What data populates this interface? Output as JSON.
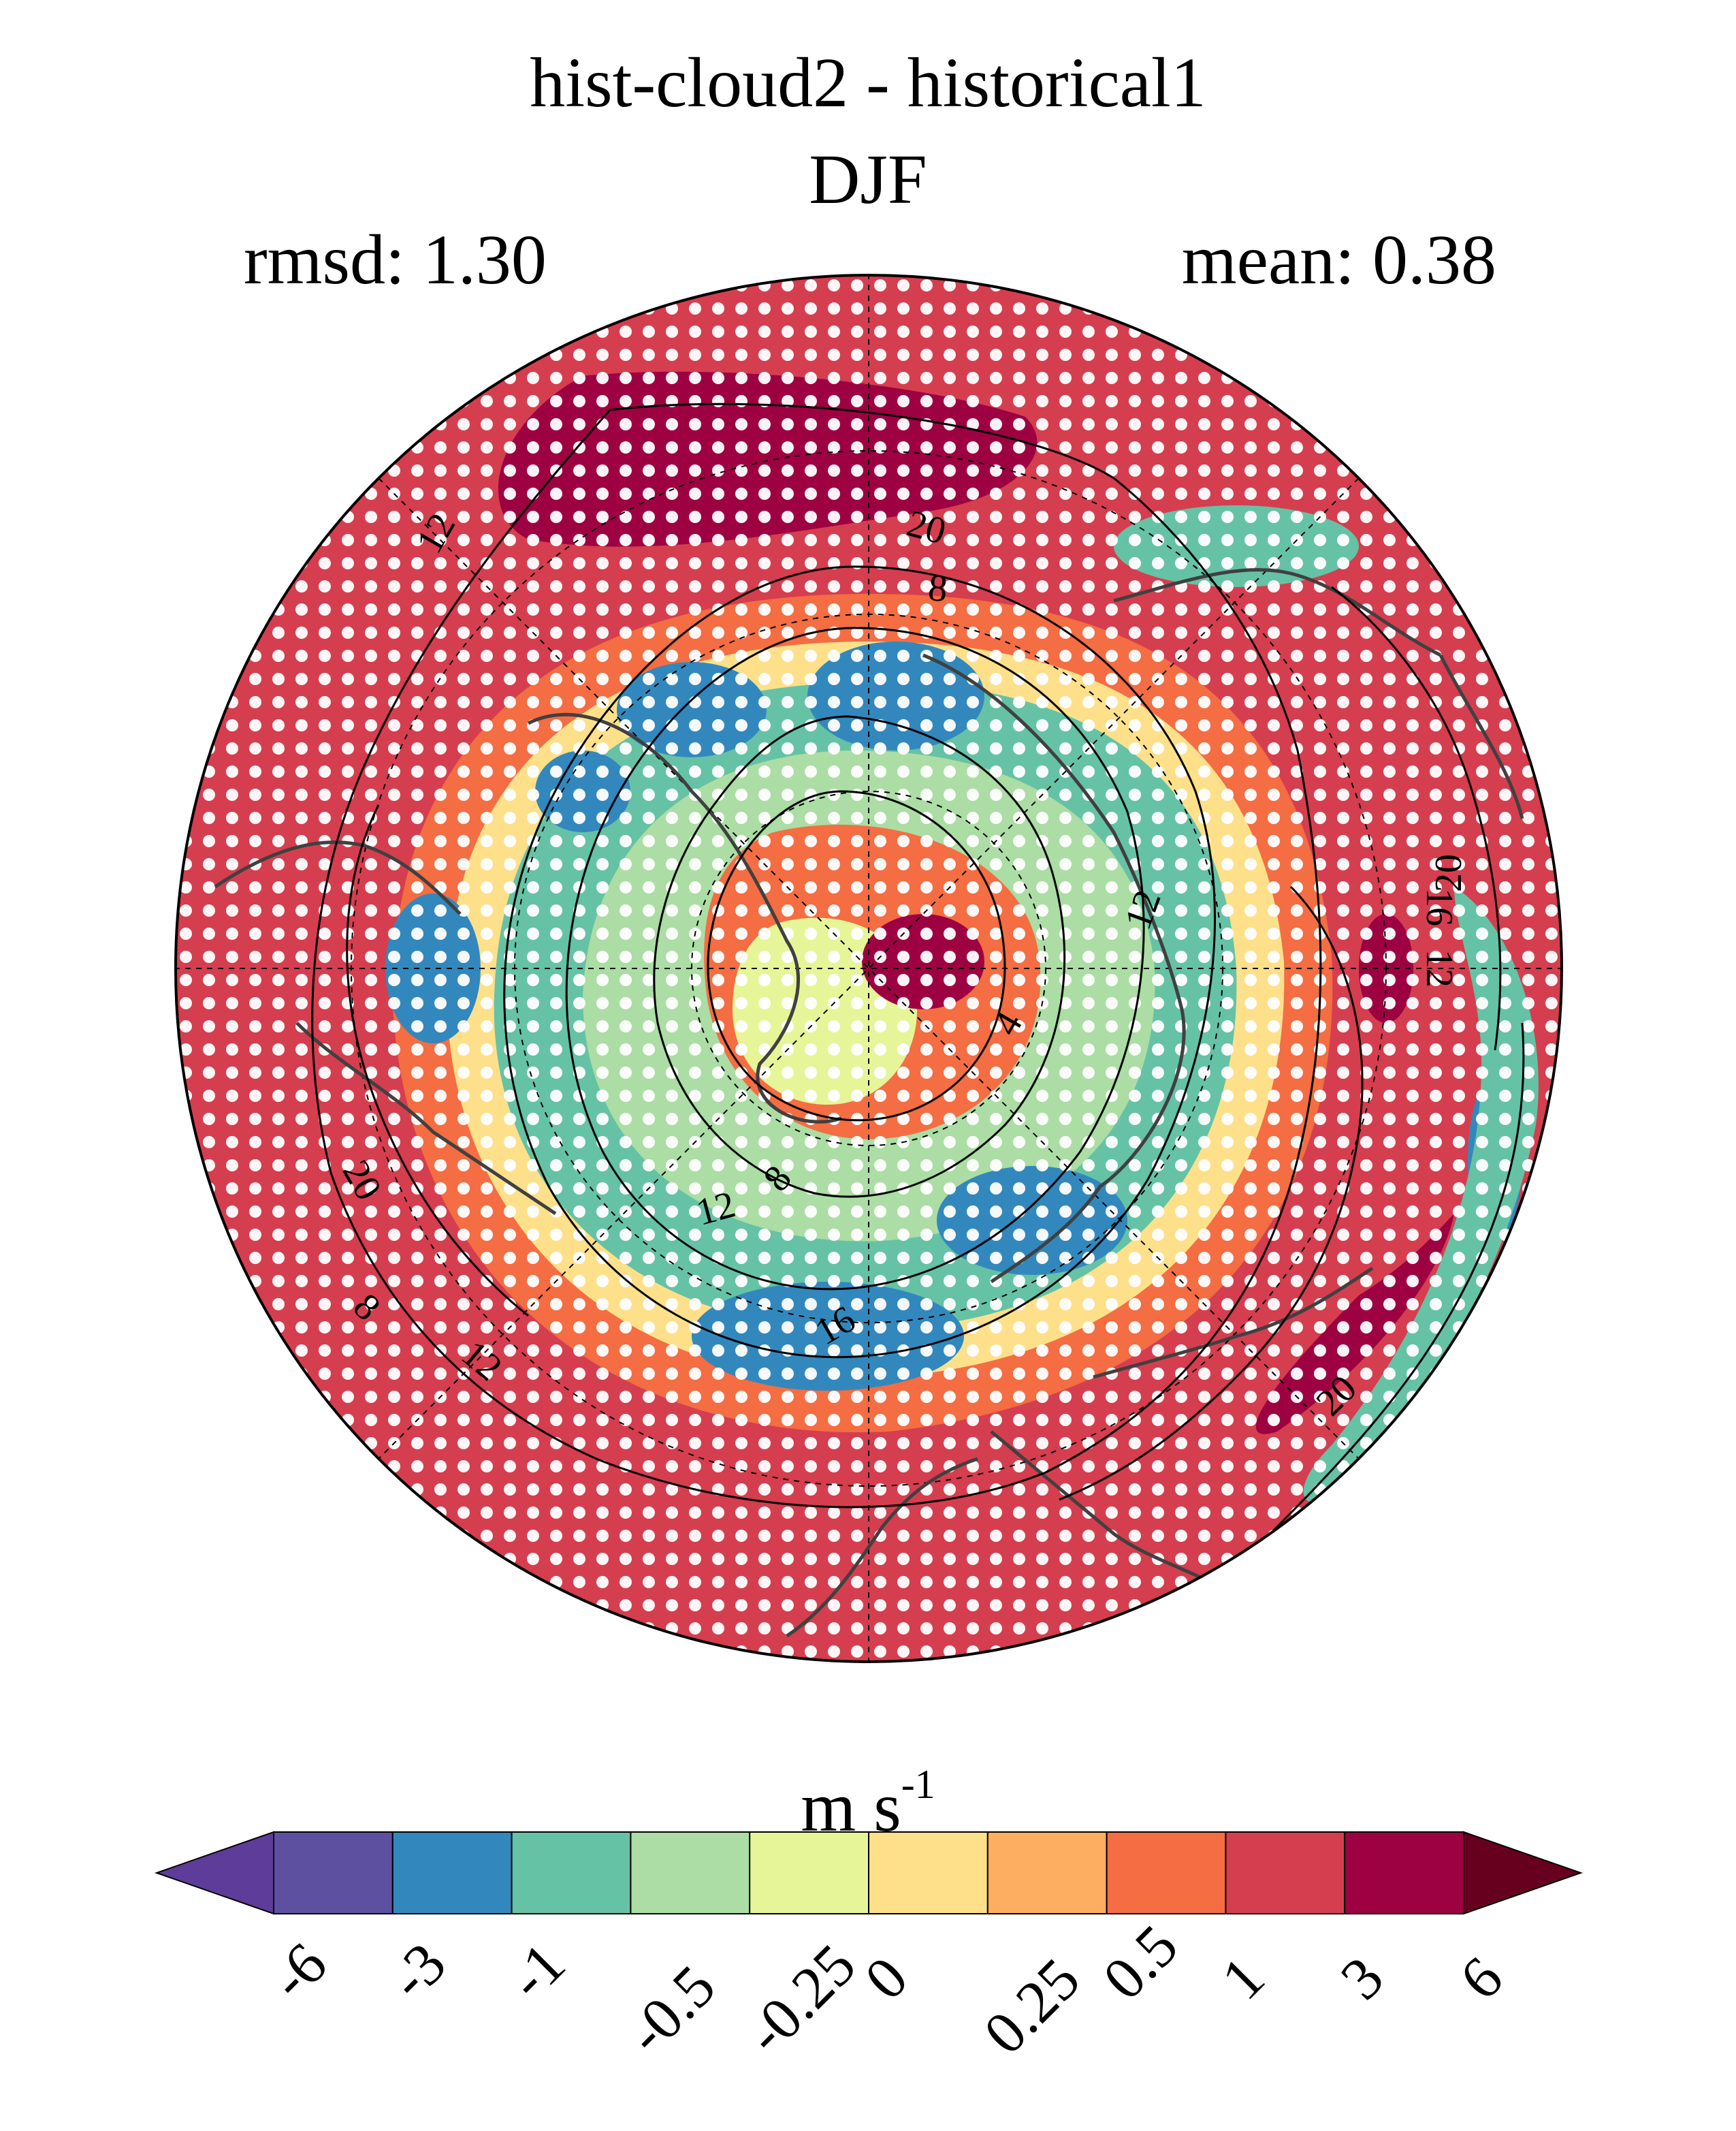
{
  "title_line1": "hist-cloud2 - historical1",
  "title_line2": "DJF",
  "stats": {
    "rmsd": "rmsd: 1.30",
    "mean": "mean: 0.38"
  },
  "map": {
    "projection": "north polar stereographic",
    "field": "wind speed difference",
    "contour_labels": [
      "12",
      "20",
      "8",
      "20",
      "12",
      "4",
      "16",
      "12",
      "20",
      "20",
      "8",
      "12",
      "16",
      "12",
      "8",
      "20"
    ],
    "stippling": "white dots",
    "coastlines": true,
    "gridlines": "dashed"
  },
  "colorbar": {
    "units_main": "m s",
    "units_exp": "-1",
    "ticks": [
      "-6",
      "-3",
      "-1",
      "-0.5",
      "-0.25",
      "0",
      "0.25",
      "0.5",
      "1",
      "3",
      "6"
    ],
    "colors": [
      "#5e3c99",
      "#5e50a1",
      "#3288bd",
      "#66c2a5",
      "#abdda4",
      "#e6f598",
      "#fee08b",
      "#fdae61",
      "#f46d43",
      "#d53e4f",
      "#9e0142",
      "#67001f"
    ],
    "extend": "both"
  }
}
